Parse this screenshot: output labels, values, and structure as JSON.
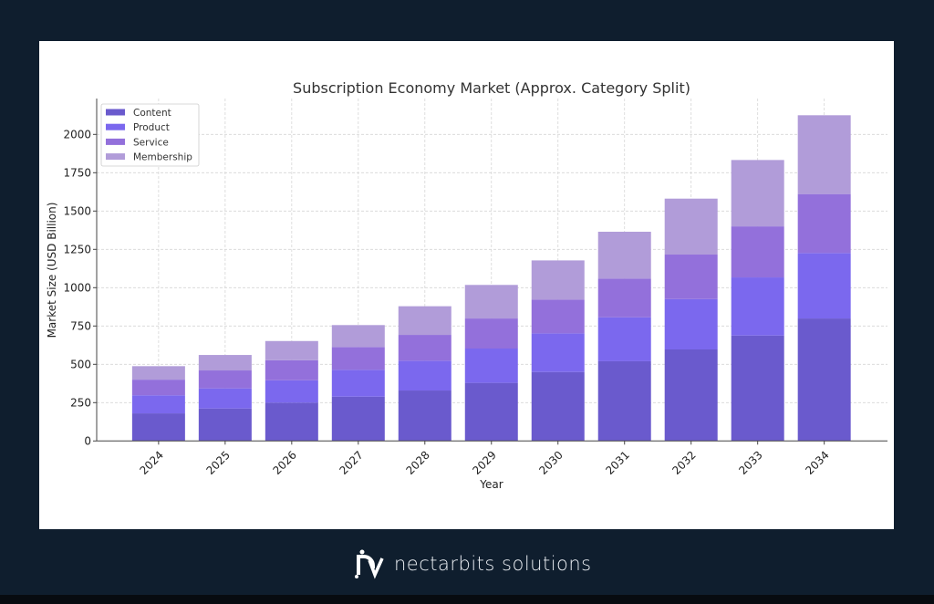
{
  "brand": {
    "name": "nectarbits solutions"
  },
  "chart_data": {
    "type": "bar",
    "stacked": true,
    "title": "Subscription Economy Market (Approx. Category Split)",
    "xlabel": "Year",
    "ylabel": "Market Size (USD Billion)",
    "categories": [
      "2024",
      "2025",
      "2026",
      "2027",
      "2028",
      "2029",
      "2030",
      "2031",
      "2032",
      "2033",
      "2034"
    ],
    "series": [
      {
        "name": "Content",
        "color": "#6a5acd",
        "values": [
          180,
          212,
          250,
          289,
          329,
          379,
          450,
          520,
          597,
          688,
          799
        ]
      },
      {
        "name": "Product",
        "color": "#7b68ee",
        "values": [
          118,
          131,
          146,
          175,
          195,
          224,
          252,
          287,
          329,
          379,
          427
        ]
      },
      {
        "name": "Service",
        "color": "#9370db",
        "values": [
          102,
          117,
          131,
          149,
          168,
          196,
          220,
          252,
          290,
          333,
          385
        ]
      },
      {
        "name": "Membership",
        "color": "#b19cd9",
        "values": [
          88,
          101,
          125,
          143,
          187,
          219,
          256,
          306,
          365,
          433,
          514
        ]
      }
    ],
    "ylim": [
      0,
      2234
    ],
    "yticks": [
      0,
      250,
      500,
      750,
      1000,
      1250,
      1500,
      1750,
      2000
    ],
    "grid": true,
    "legend": "top-left"
  }
}
